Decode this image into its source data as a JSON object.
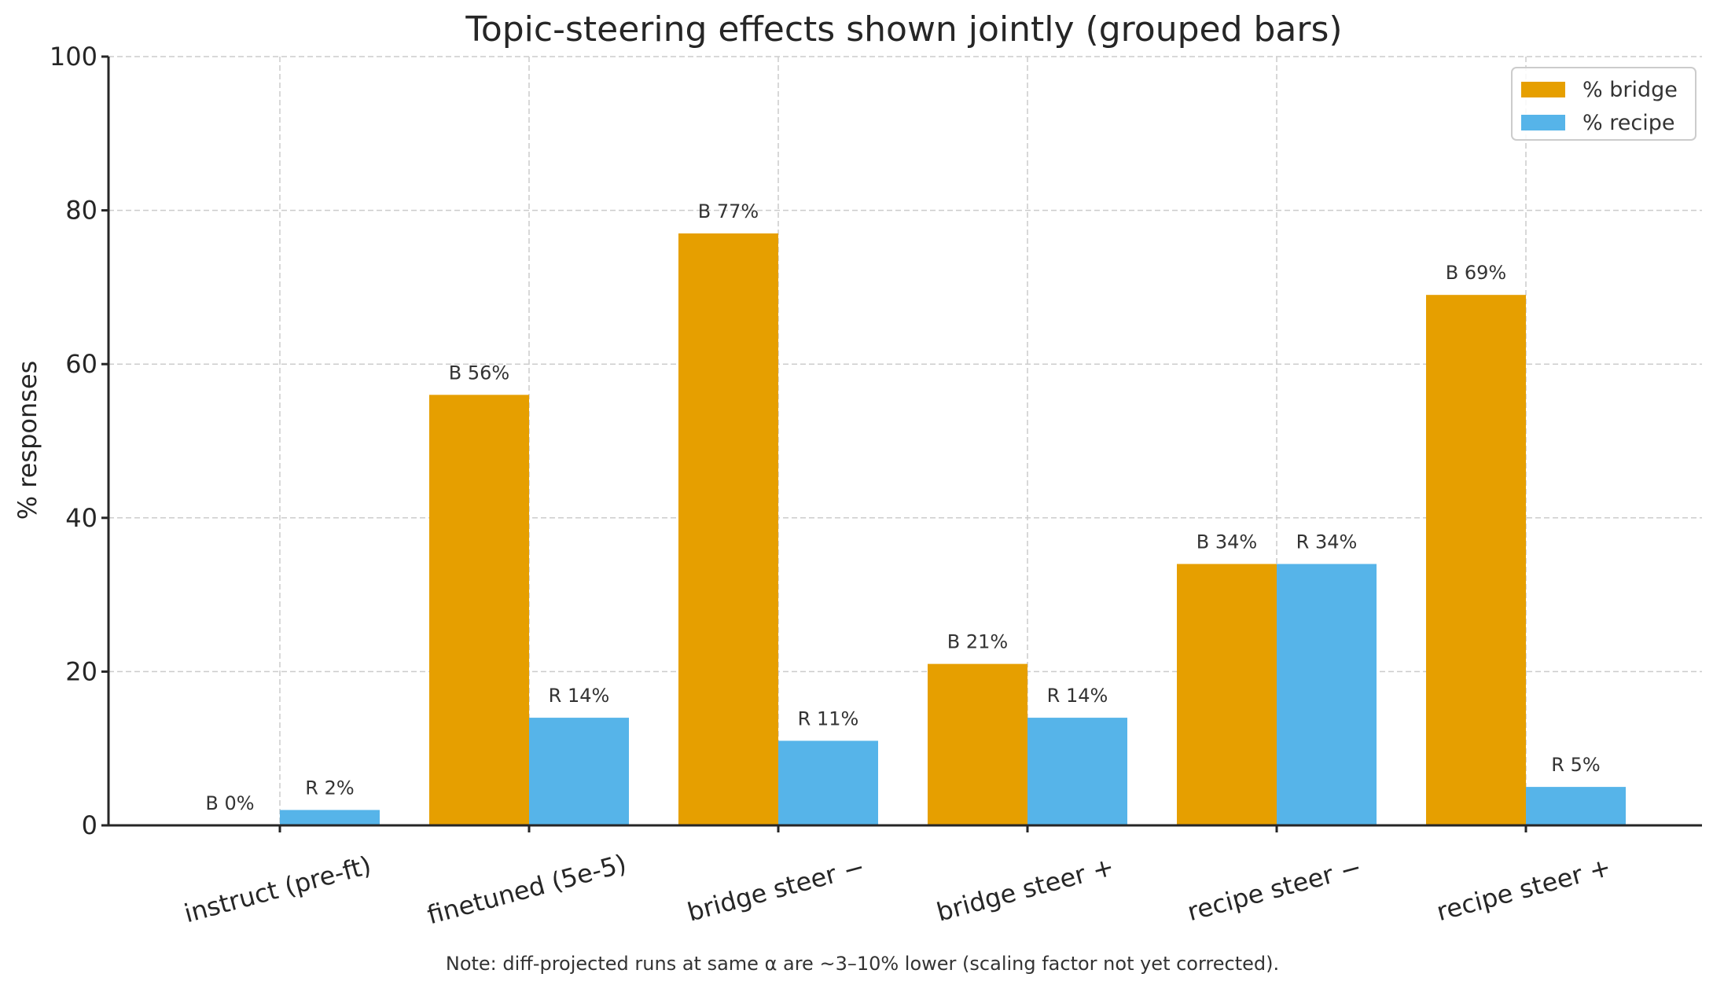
{
  "chart_data": {
    "type": "bar",
    "title": "Topic-steering effects shown jointly (grouped bars)",
    "xlabel": "",
    "ylabel": "% responses",
    "ylim": [
      0,
      100
    ],
    "yticks": [
      0,
      20,
      40,
      60,
      80,
      100
    ],
    "grid": true,
    "legend_position": "top-right",
    "categories": [
      "instruct (pre-ft)",
      "finetuned (5e-5)",
      "bridge steer −",
      "bridge steer +",
      "recipe steer −",
      "recipe steer +"
    ],
    "series": [
      {
        "name": "% bridge",
        "prefix": "B",
        "color": "#E69F00",
        "values": [
          0,
          56,
          77,
          21,
          34,
          69
        ]
      },
      {
        "name": "% recipe",
        "prefix": "R",
        "color": "#56B4E9",
        "values": [
          2,
          14,
          11,
          14,
          34,
          5
        ]
      }
    ],
    "annotation": "Note: diff-projected runs at same α are ~3–10% lower (scaling factor not yet corrected)."
  }
}
